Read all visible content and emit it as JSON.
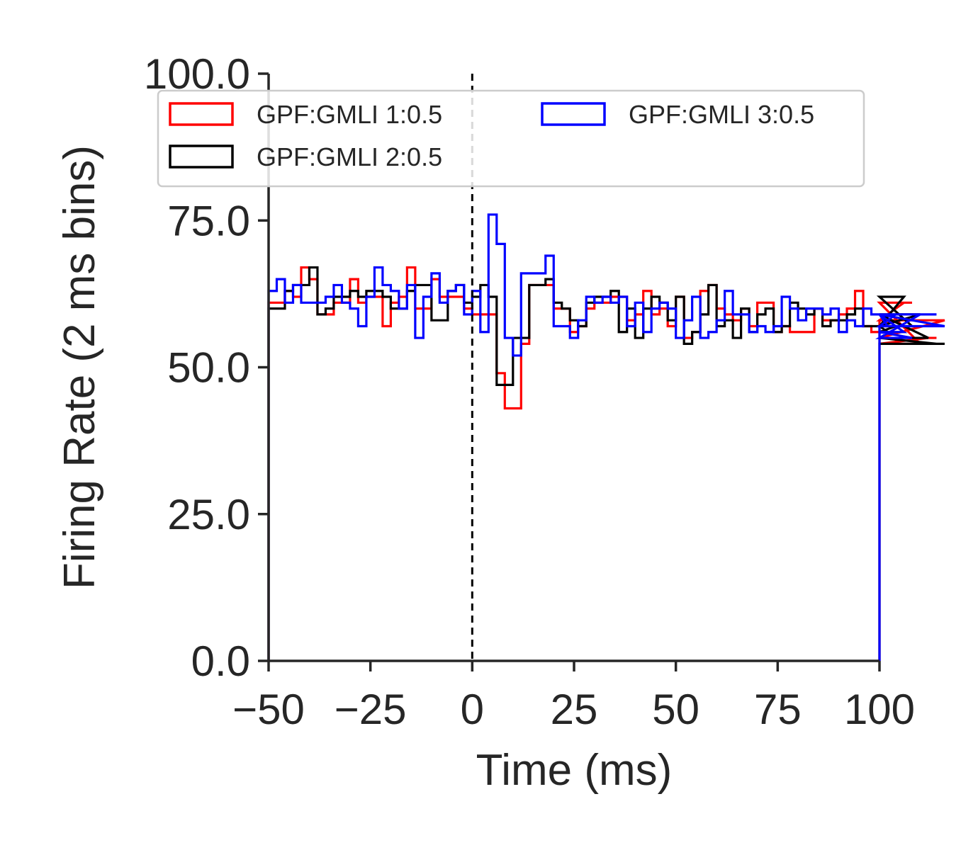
{
  "chart_data": {
    "type": "step-histogram",
    "xlabel": "Time (ms)",
    "ylabel": "Firing Rate (2 ms bins)",
    "xlim": [
      -50,
      100
    ],
    "ylim": [
      0,
      100
    ],
    "xticks": [
      -50,
      -25,
      0,
      25,
      50,
      75,
      100
    ],
    "xtick_labels": [
      "−50",
      "−25",
      "0",
      "25",
      "50",
      "75",
      "100"
    ],
    "yticks": [
      0,
      25,
      50,
      75,
      100
    ],
    "ytick_labels": [
      "0.0",
      "25.0",
      "50.0",
      "75.0",
      "100.0"
    ],
    "bin_width_ms": 2,
    "stimulus_line_x": 0,
    "legend_position": "top",
    "series": [
      {
        "name": "GPF:GMLI 1:0.5",
        "color": "#ff0000",
        "values": [
          61,
          61,
          63,
          62,
          67,
          65,
          59,
          59,
          61,
          61,
          65,
          61,
          62,
          62,
          57,
          61,
          62,
          67,
          60,
          60,
          65,
          62,
          62,
          62,
          60,
          59,
          59,
          59,
          49,
          43,
          43,
          54,
          64,
          64,
          64,
          60,
          60,
          56,
          57,
          60,
          61,
          61,
          62,
          62,
          58,
          59,
          63,
          59,
          60,
          57,
          62,
          55,
          56,
          63,
          64,
          60,
          59,
          58,
          60,
          57,
          61,
          61,
          56,
          57,
          56,
          56,
          56,
          60,
          58,
          58,
          59,
          60,
          63,
          57,
          56,
          57,
          57,
          58,
          61,
          61,
          54,
          55,
          55,
          58
        ]
      },
      {
        "name": "GPF:GMLI 2:0.5",
        "color": "#000000",
        "values": [
          60,
          60,
          63,
          64,
          64,
          67,
          59,
          60,
          62,
          62,
          63,
          62,
          63,
          63,
          62,
          60,
          60,
          63,
          64,
          64,
          58,
          58,
          63,
          64,
          61,
          62,
          64,
          62,
          47,
          47,
          55,
          55,
          64,
          64,
          65,
          61,
          60,
          58,
          57,
          61,
          62,
          62,
          63,
          56,
          60,
          55,
          60,
          62,
          61,
          58,
          62,
          54,
          56,
          59,
          64,
          57,
          58,
          55,
          60,
          56,
          59,
          60,
          56,
          57,
          61,
          60,
          59,
          60,
          57,
          58,
          58,
          59,
          60,
          57,
          57,
          57,
          56,
          57,
          62,
          57,
          59,
          55,
          54,
          54
        ]
      },
      {
        "name": "GPF:GMLI 3:0.5",
        "color": "#0000ff",
        "values": [
          63,
          65,
          61,
          64,
          61,
          61,
          61,
          62,
          64,
          61,
          60,
          57,
          62,
          67,
          64,
          63,
          60,
          64,
          55,
          62,
          66,
          61,
          63,
          64,
          59,
          63,
          56,
          76,
          71,
          55,
          52,
          66,
          66,
          66,
          69,
          57,
          57,
          55,
          58,
          62,
          61,
          62,
          61,
          62,
          57,
          61,
          56,
          60,
          61,
          60,
          55,
          58,
          62,
          55,
          56,
          58,
          63,
          59,
          59,
          56,
          57,
          56,
          57,
          62,
          60,
          58,
          60,
          60,
          59,
          60,
          56,
          58,
          57,
          60,
          59,
          59,
          57,
          59,
          56,
          55,
          59,
          59,
          59,
          57
        ]
      }
    ]
  }
}
